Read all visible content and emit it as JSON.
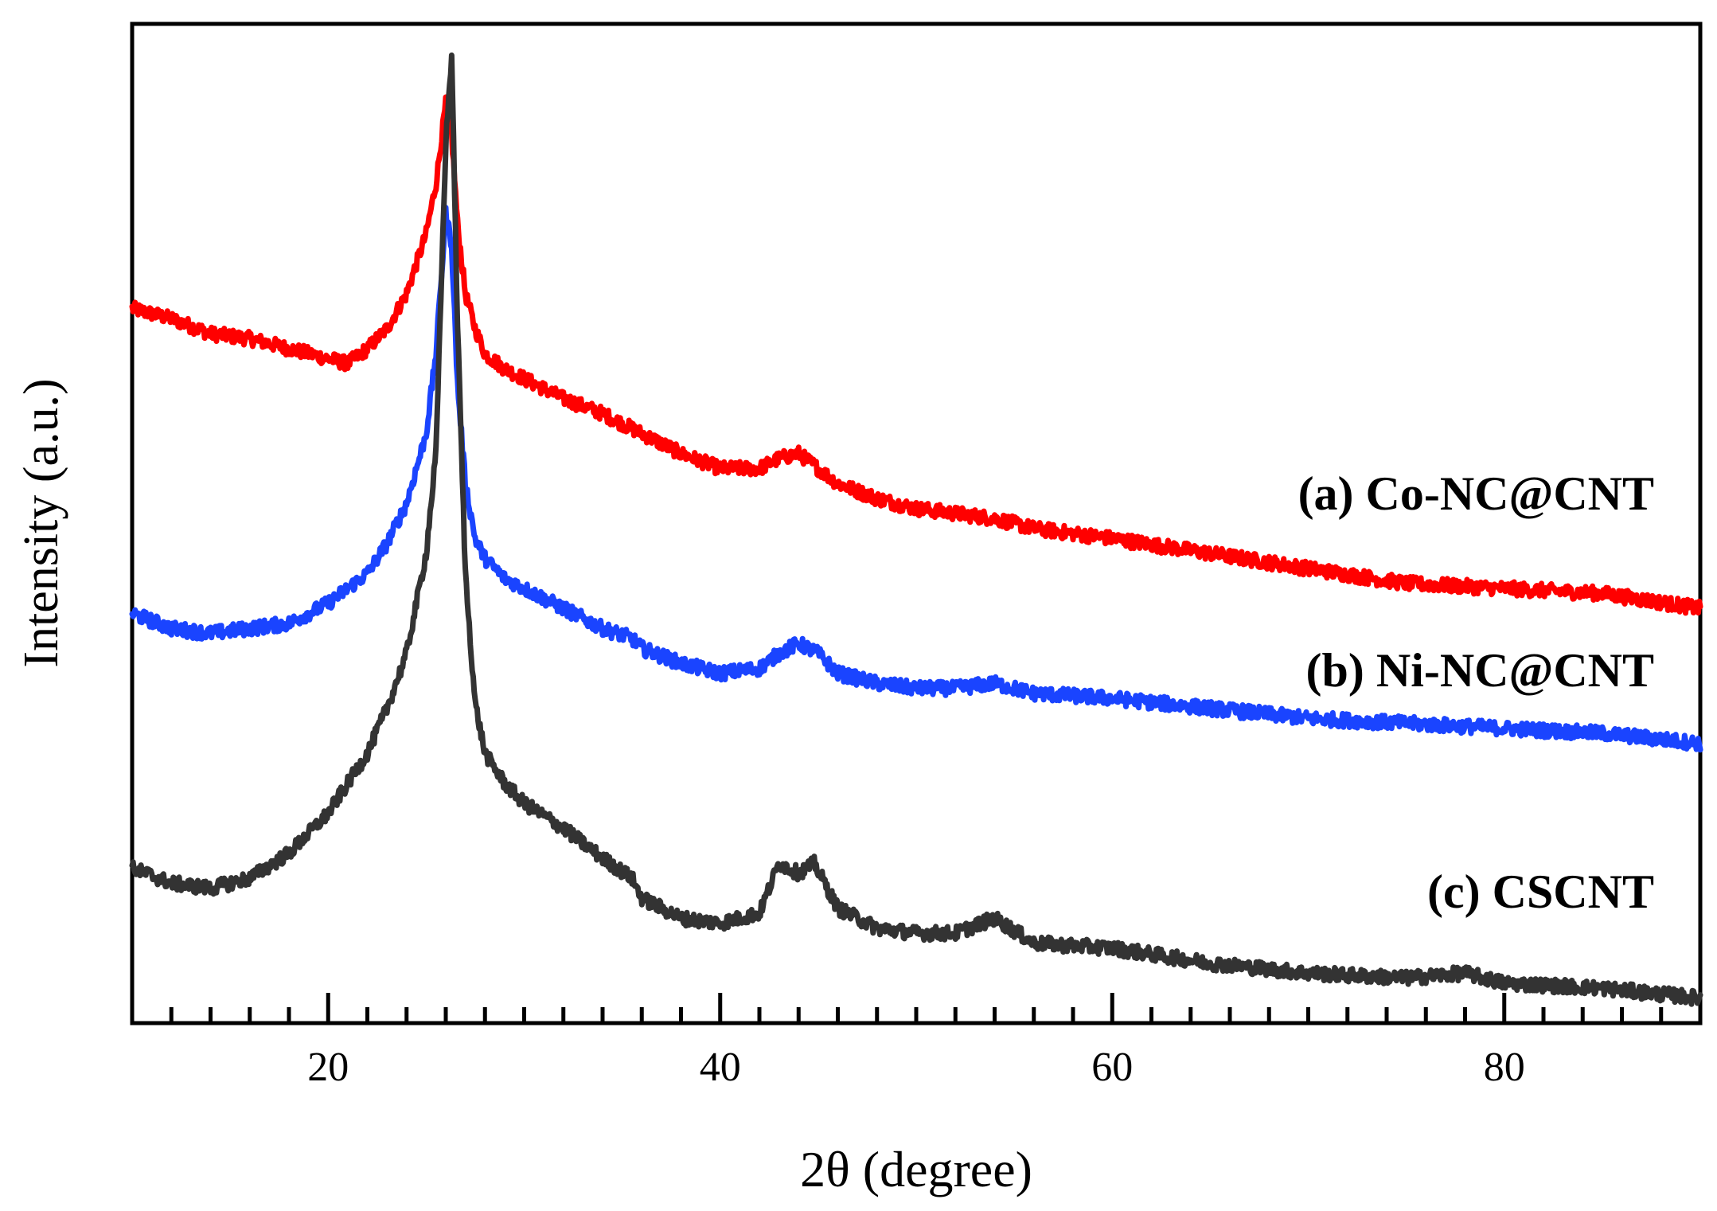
{
  "chart_data": {
    "type": "line",
    "title": "",
    "xlabel": "2θ  (degree)",
    "ylabel": "Intensity (a.u.)",
    "xlim": [
      10,
      90
    ],
    "ylim": [
      0,
      100
    ],
    "xticks": [
      20,
      40,
      60,
      80
    ],
    "minor_tick_step": 2,
    "grid": false,
    "y_tick_labels_shown": false,
    "series": [
      {
        "name": "(a) Co-NC@CNT",
        "color": "#ff0000",
        "x": [
          10,
          12,
          14,
          16,
          18,
          20,
          21,
          22,
          23,
          24,
          25,
          25.5,
          26,
          26.3,
          26.6,
          27,
          27.5,
          28,
          29,
          30,
          32,
          34,
          36,
          38,
          40,
          42,
          43,
          44,
          45,
          46,
          48,
          50,
          52,
          54,
          56,
          60,
          65,
          70,
          75,
          80,
          85,
          90
        ],
        "y": [
          71.5,
          70.5,
          69,
          68.5,
          67.5,
          66.5,
          66,
          67.5,
          69.5,
          73,
          79,
          84,
          92,
          89,
          80,
          73,
          69.5,
          67,
          65.5,
          64.5,
          62.5,
          61,
          59,
          57,
          55.5,
          55.5,
          56.5,
          57,
          55.5,
          54,
          52.5,
          51.5,
          51,
          50.5,
          49.5,
          48.5,
          47,
          45.5,
          44,
          43.5,
          43,
          41.5
        ]
      },
      {
        "name": "(b) Ni-NC@CNT",
        "color": "#1a44ff",
        "x": [
          10,
          12,
          14,
          16,
          18,
          20,
          22,
          23,
          24,
          25,
          25.5,
          26,
          26.3,
          26.6,
          27,
          27.5,
          28,
          29,
          30,
          32,
          34,
          35.5,
          36,
          38,
          40,
          42,
          43,
          44,
          45,
          46,
          48,
          50,
          52,
          54,
          56,
          60,
          65,
          70,
          75,
          80,
          85,
          90
        ],
        "y": [
          41,
          39.5,
          39,
          39.5,
          40,
          42,
          45,
          48,
          52,
          59,
          67,
          81,
          78,
          64,
          54,
          48.5,
          46.5,
          44.5,
          43.5,
          41.5,
          39.5,
          38.5,
          37.5,
          36,
          35,
          35.5,
          37,
          38,
          37,
          35,
          34,
          33.5,
          33.5,
          34,
          33,
          32.5,
          31.5,
          30.5,
          30,
          29.5,
          29,
          28
        ]
      },
      {
        "name": "(c) CSCNT",
        "color": "#333333",
        "x": [
          10,
          12,
          14,
          16,
          18,
          20,
          22,
          23,
          24,
          25,
          25.5,
          26,
          26.3,
          26.6,
          27,
          27.5,
          28,
          29,
          30,
          32,
          34,
          35.5,
          36,
          38,
          40,
          42,
          43,
          44,
          44.8,
          46,
          48,
          50,
          52,
          54,
          56,
          60,
          65,
          70,
          75,
          78,
          80,
          85,
          90
        ],
        "y": [
          15.5,
          14,
          13.5,
          14.5,
          17,
          21,
          27,
          31.5,
          37,
          47,
          57,
          88,
          97,
          70,
          45,
          32,
          27,
          24,
          22,
          19.5,
          16.5,
          14.5,
          12.5,
          10.5,
          10,
          11,
          16,
          15,
          16,
          11.5,
          9.5,
          9,
          9,
          10.5,
          8,
          7.5,
          6,
          5,
          4.5,
          5,
          4,
          3.5,
          2.5
        ]
      }
    ]
  }
}
